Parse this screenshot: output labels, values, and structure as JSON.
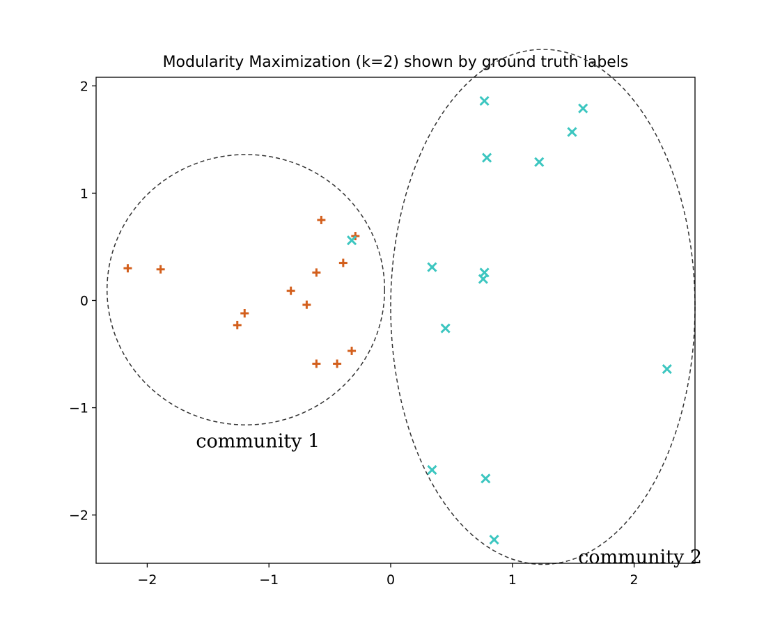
{
  "chart_data": {
    "type": "scatter",
    "title": "Modularity Maximization (k=2) shown by ground truth labels",
    "xlim": [
      -2.42,
      2.5
    ],
    "ylim": [
      -2.45,
      2.08
    ],
    "xticks": [
      -2,
      -1,
      0,
      1,
      2
    ],
    "yticks": [
      -2,
      -1,
      0,
      1,
      2
    ],
    "xtick_labels": [
      "−2",
      "−1",
      "0",
      "1",
      "2"
    ],
    "ytick_labels": [
      "−2",
      "−1",
      "0",
      "1",
      "2"
    ],
    "grid": false,
    "series": [
      {
        "marker": "plus",
        "color": "#d35f1c",
        "points": [
          [
            -2.16,
            0.3
          ],
          [
            -1.89,
            0.29
          ],
          [
            -1.26,
            -0.23
          ],
          [
            -1.2,
            -0.12
          ],
          [
            -0.82,
            0.09
          ],
          [
            -0.69,
            -0.04
          ],
          [
            -0.61,
            0.26
          ],
          [
            -0.57,
            0.75
          ],
          [
            -0.39,
            0.35
          ],
          [
            -0.29,
            0.6
          ],
          [
            -0.32,
            -0.47
          ],
          [
            -0.44,
            -0.59
          ],
          [
            -0.61,
            -0.59
          ]
        ]
      },
      {
        "marker": "x",
        "color": "#3cc6c0",
        "points": [
          [
            0.77,
            1.86
          ],
          [
            1.58,
            1.79
          ],
          [
            1.49,
            1.57
          ],
          [
            0.79,
            1.33
          ],
          [
            1.22,
            1.29
          ],
          [
            -0.32,
            0.56
          ],
          [
            0.34,
            0.31
          ],
          [
            0.77,
            0.26
          ],
          [
            0.76,
            0.2
          ],
          [
            0.45,
            -0.26
          ],
          [
            2.27,
            -0.64
          ],
          [
            0.34,
            -1.58
          ],
          [
            0.78,
            -1.66
          ],
          [
            0.85,
            -2.23
          ]
        ]
      }
    ],
    "regions": [
      {
        "shape": "circle",
        "center": [
          -1.19,
          0.1
        ],
        "radius_x": 1.14,
        "radius_y": 1.26,
        "style": "dashed",
        "color": "#333333"
      },
      {
        "shape": "ellipse",
        "center": [
          1.25,
          -0.06
        ],
        "radius_x": 1.25,
        "radius_y": 2.4,
        "style": "dashed",
        "color": "#333333"
      }
    ],
    "annotations": [
      {
        "text": "community 1",
        "x": -1.6,
        "y": -1.37
      },
      {
        "text": "community 2",
        "x": 1.54,
        "y": -2.45
      }
    ]
  }
}
